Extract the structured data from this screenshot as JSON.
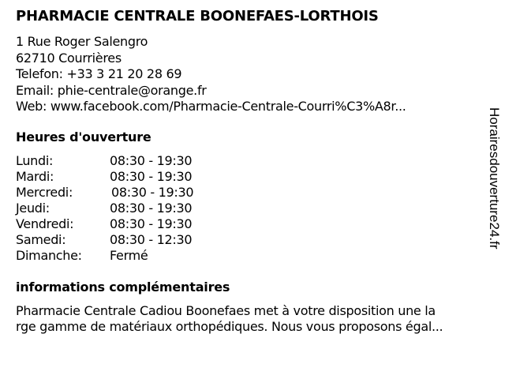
{
  "title": "PHARMACIE CENTRALE BOONEFAES-LORTHOIS",
  "address": {
    "street": "1 Rue Roger Salengro",
    "city": "62710 Courrières",
    "phone": "Telefon: +33 3 21 20 28 69",
    "email": "Email: phie-centrale@orange.fr",
    "web": "Web: www.facebook.com/Pharmacie-Centrale-Courri%C3%A8r..."
  },
  "hours_heading": "Heures d'ouverture",
  "hours": [
    {
      "day": "Lundi:",
      "time": "08:30 - 19:30"
    },
    {
      "day": "Mardi:",
      "time": "08:30 - 19:30"
    },
    {
      "day": "Mercredi:",
      "time": "08:30 - 19:30"
    },
    {
      "day": "Jeudi:",
      "time": "08:30 - 19:30"
    },
    {
      "day": "Vendredi:",
      "time": "08:30 - 19:30"
    },
    {
      "day": "Samedi:",
      "time": "08:30 - 12:30"
    },
    {
      "day": "Dimanche:",
      "time": "Fermé"
    }
  ],
  "info_heading": "informations complémentaires",
  "info_lines": [
    "Pharmacie Centrale Cadiou Boonefaes met à votre disposition une la",
    "rge gamme de matériaux orthopédiques. Nous vous proposons égal..."
  ],
  "watermark": "Horairesdouverture24.fr"
}
